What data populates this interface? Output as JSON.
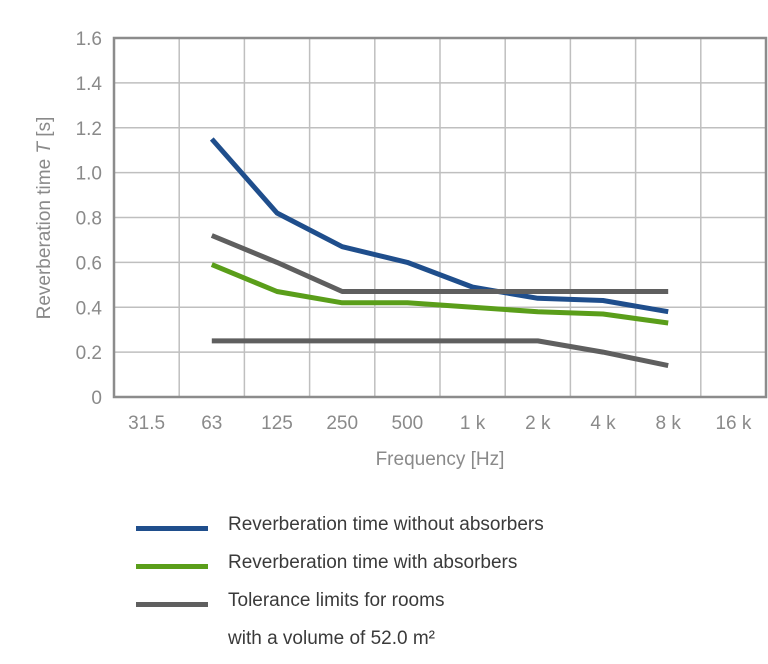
{
  "chart_data": {
    "type": "line",
    "x_categories": [
      "31.5",
      "63",
      "125",
      "250",
      "500",
      "1 k",
      "2 k",
      "4 k",
      "8 k",
      "16 k"
    ],
    "y_ticks": [
      "0",
      "0.2",
      "0.4",
      "0.6",
      "0.8",
      "1.0",
      "1.2",
      "1.4",
      "1.6"
    ],
    "ylim": [
      0,
      1.6
    ],
    "xlabel": "Frequency [Hz]",
    "ylabel_prefix": "Reverberation time ",
    "ylabel_symbol": "T",
    "ylabel_suffix": " [s]",
    "grid": true,
    "series": [
      {
        "name": "Reverberation time without absorbers",
        "color": "#1f4e8c",
        "x": [
          "63",
          "125",
          "250",
          "500",
          "1 k",
          "2 k",
          "4 k",
          "8 k"
        ],
        "values": [
          1.15,
          0.82,
          0.67,
          0.6,
          0.49,
          0.44,
          0.43,
          0.38
        ]
      },
      {
        "name": "Reverberation time with absorbers",
        "color": "#5a9e1a",
        "x": [
          "63",
          "125",
          "250",
          "500",
          "1 k",
          "2 k",
          "4 k",
          "8 k"
        ],
        "values": [
          0.59,
          0.47,
          0.42,
          0.42,
          0.4,
          0.38,
          0.37,
          0.33
        ]
      },
      {
        "name": "Tolerance limits for rooms",
        "color": "#5f5f5f",
        "x": [
          "63",
          "125",
          "250",
          "500",
          "1 k",
          "2 k",
          "4 k",
          "8 k"
        ],
        "values": [
          0.72,
          0.6,
          0.47,
          0.47,
          0.47,
          0.47,
          0.47,
          0.47
        ]
      },
      {
        "name": "",
        "color": "#5f5f5f",
        "x": [
          "63",
          "125",
          "250",
          "500",
          "1 k",
          "2 k",
          "4 k",
          "8 k"
        ],
        "values": [
          0.25,
          0.25,
          0.25,
          0.25,
          0.25,
          0.25,
          0.2,
          0.14
        ]
      }
    ]
  },
  "legend": {
    "items": [
      {
        "label": "Reverberation time without absorbers",
        "color": "#1f4e8c"
      },
      {
        "label": "Reverberation time with absorbers",
        "color": "#5a9e1a"
      },
      {
        "label": "Tolerance limits for rooms",
        "color": "#5f5f5f"
      }
    ],
    "volume_note": "with a volume of  52.0 m²"
  }
}
